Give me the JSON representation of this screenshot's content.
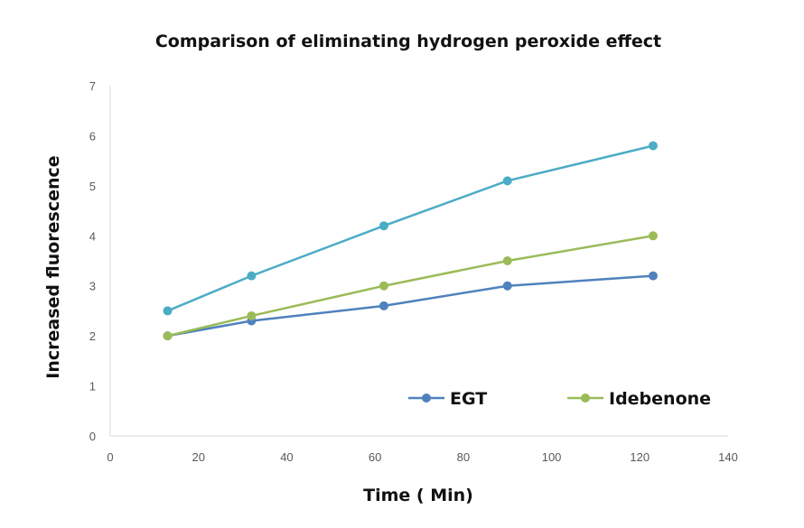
{
  "chart_data": {
    "type": "line",
    "title": "Comparison of eliminating hydrogen peroxide effect",
    "xlabel": "Time ( Min)",
    "ylabel": "Increased fluorescence",
    "xlim": [
      0,
      140
    ],
    "ylim": [
      0,
      7
    ],
    "x_ticks": [
      "0",
      "20",
      "40",
      "60",
      "80",
      "100",
      "120",
      "140"
    ],
    "y_ticks": [
      "0",
      "1",
      "2",
      "3",
      "4",
      "5",
      "6",
      "7"
    ],
    "x": [
      13,
      32,
      62,
      90,
      123
    ],
    "grid": false,
    "legend_position": "bottom-right",
    "series": [
      {
        "name": "EGT",
        "color": "#4f81bd",
        "values": [
          2.0,
          2.3,
          2.6,
          3.0,
          3.2
        ],
        "in_legend": true
      },
      {
        "name": "Idebenone",
        "color": "#9bbb59",
        "values": [
          2.0,
          2.4,
          3.0,
          3.5,
          4.0
        ],
        "in_legend": true
      },
      {
        "name": "",
        "color": "#4bacc6",
        "values": [
          2.5,
          3.2,
          4.2,
          5.1,
          5.8
        ],
        "in_legend": false
      }
    ]
  }
}
